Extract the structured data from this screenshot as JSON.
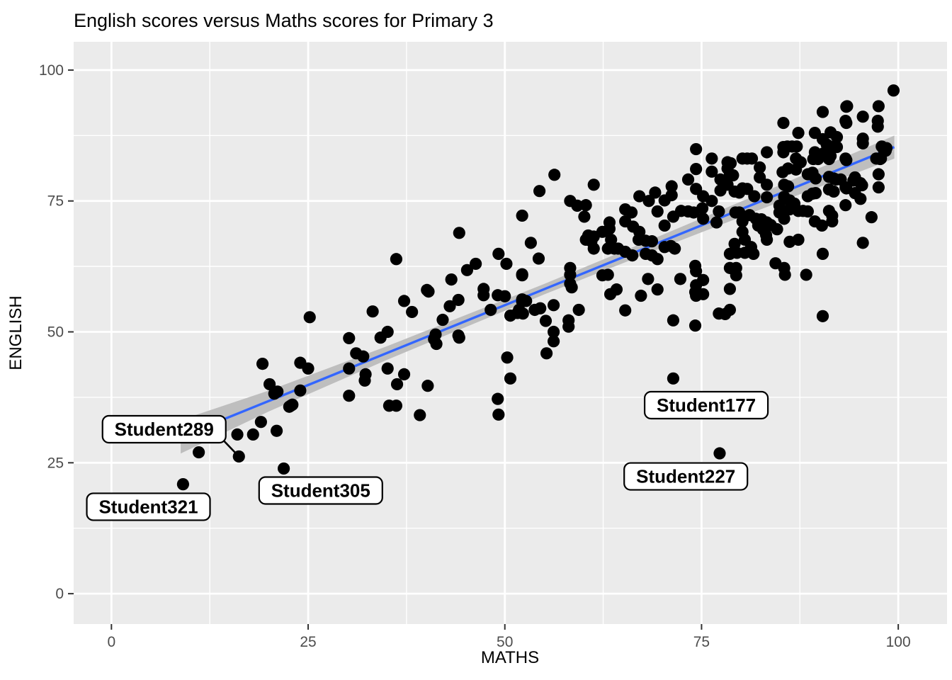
{
  "chart_data": {
    "type": "scatter",
    "title": "English scores versus Maths scores for Primary 3",
    "xlabel": "MATHS",
    "ylabel": "ENGLISH",
    "xlim": [
      -4.8,
      106.2
    ],
    "ylim": [
      -5.8,
      105.4
    ],
    "x_ticks": [
      "0",
      "25",
      "50",
      "75",
      "100"
    ],
    "y_ticks": [
      "0",
      "25",
      "50",
      "75",
      "100"
    ],
    "x_tick_values": [
      0,
      25,
      50,
      75,
      100
    ],
    "y_tick_values": [
      0,
      25,
      50,
      75,
      100
    ],
    "grid": "major and minor white gridlines on grey panel",
    "legend": "none",
    "colors": {
      "panel": "#EBEBEB",
      "grid_major": "#FFFFFF",
      "grid_minor": "#F5F5F5",
      "point": "#000000",
      "smooth_line": "#3366FF",
      "ribbon": "#BEBEBE",
      "tick_label": "#4D4D4D",
      "tick_mark": "#333333",
      "axis_title": "#000000",
      "label_box_bg": "#FFFFFF",
      "label_box_border": "#000000",
      "label_text": "#000000"
    },
    "smooth": {
      "method": "lm",
      "x_start": 8.8,
      "x_end": 99.5,
      "intercept": 24.6,
      "slope": 0.61,
      "ribbon_halfwidth": [
        [
          8.8,
          3.2
        ],
        [
          20,
          2.0
        ],
        [
          35,
          1.3
        ],
        [
          55,
          1.0
        ],
        [
          70,
          1.2
        ],
        [
          85,
          1.6
        ],
        [
          99.5,
          2.2
        ]
      ]
    },
    "annotations": [
      {
        "label": "Student289",
        "point": [
          16.2,
          26.2
        ],
        "box_center": [
          6.7,
          31.4
        ],
        "leader": true
      },
      {
        "label": "Student305",
        "point": [
          21.9,
          23.9
        ],
        "box_center": [
          26.6,
          19.7
        ],
        "leader": false
      },
      {
        "label": "Student321",
        "point": [
          9.1,
          20.9
        ],
        "box_center": [
          4.7,
          16.6
        ],
        "leader": false
      },
      {
        "label": "Student177",
        "point": [
          71.4,
          41.1
        ],
        "box_center": [
          75.6,
          36.0
        ],
        "leader": false
      },
      {
        "label": "Student227",
        "point": [
          77.3,
          26.8
        ],
        "box_center": [
          73.0,
          22.4
        ],
        "leader": false
      }
    ],
    "points": [
      [
        9.1,
        20.9
      ],
      [
        11.1,
        27.0
      ],
      [
        16.2,
        26.2
      ],
      [
        16.0,
        30.4
      ],
      [
        18.0,
        30.4
      ],
      [
        19.0,
        32.8
      ],
      [
        20.7,
        38.2
      ],
      [
        21.0,
        31.1
      ],
      [
        21.9,
        23.9
      ],
      [
        22.6,
        35.7
      ],
      [
        19.2,
        43.9
      ],
      [
        20.1,
        40.0
      ],
      [
        21.1,
        38.6
      ],
      [
        23.0,
        36.1
      ],
      [
        22.8,
        35.9
      ],
      [
        24.0,
        44.1
      ],
      [
        25.0,
        43.0
      ],
      [
        24.0,
        38.8
      ],
      [
        25.2,
        52.8
      ],
      [
        30.2,
        48.8
      ],
      [
        30.2,
        43.0
      ],
      [
        30.2,
        37.8
      ],
      [
        31.1,
        45.9
      ],
      [
        32.0,
        45.3
      ],
      [
        32.3,
        41.9
      ],
      [
        32.2,
        40.7
      ],
      [
        33.2,
        53.9
      ],
      [
        34.2,
        48.9
      ],
      [
        35.1,
        50.0
      ],
      [
        35.1,
        43.0
      ],
      [
        35.3,
        35.9
      ],
      [
        36.2,
        35.9
      ],
      [
        36.3,
        40.0
      ],
      [
        36.2,
        63.9
      ],
      [
        37.2,
        55.9
      ],
      [
        37.2,
        41.9
      ],
      [
        38.2,
        53.8
      ],
      [
        39.2,
        34.1
      ],
      [
        40.2,
        39.7
      ],
      [
        40.3,
        57.7
      ],
      [
        40.1,
        58.0
      ],
      [
        41.0,
        48.6
      ],
      [
        41.3,
        47.7
      ],
      [
        41.2,
        49.5
      ],
      [
        42.1,
        52.3
      ],
      [
        43.2,
        60.0
      ],
      [
        43.0,
        54.9
      ],
      [
        44.2,
        68.9
      ],
      [
        44.1,
        56.1
      ],
      [
        44.1,
        49.3
      ],
      [
        44.2,
        48.9
      ],
      [
        45.2,
        61.8
      ],
      [
        46.3,
        63.0
      ],
      [
        47.3,
        58.2
      ],
      [
        47.3,
        57.0
      ],
      [
        48.2,
        54.2
      ],
      [
        49.2,
        64.9
      ],
      [
        49.1,
        57.0
      ],
      [
        49.1,
        37.2
      ],
      [
        49.2,
        34.2
      ],
      [
        50.2,
        63.0
      ],
      [
        50.0,
        56.8
      ],
      [
        50.3,
        45.1
      ],
      [
        50.7,
        53.1
      ],
      [
        50.7,
        41.1
      ],
      [
        51.6,
        53.6
      ],
      [
        51.8,
        54.2
      ],
      [
        52.2,
        72.2
      ],
      [
        52.2,
        61.0
      ],
      [
        52.2,
        60.8
      ],
      [
        52.2,
        56.2
      ],
      [
        52.2,
        55.8
      ],
      [
        52.7,
        55.9
      ],
      [
        52.3,
        53.5
      ],
      [
        53.3,
        67.0
      ],
      [
        53.8,
        54.2
      ],
      [
        54.3,
        64.0
      ],
      [
        54.4,
        76.9
      ],
      [
        54.5,
        54.5
      ],
      [
        55.2,
        52.1
      ],
      [
        55.3,
        45.9
      ],
      [
        56.2,
        55.1
      ],
      [
        56.2,
        50.0
      ],
      [
        56.2,
        48.2
      ],
      [
        56.3,
        80.0
      ],
      [
        58.3,
        75.0
      ],
      [
        58.3,
        62.2
      ],
      [
        58.3,
        60.9
      ],
      [
        58.3,
        59.2
      ],
      [
        58.5,
        58.5
      ],
      [
        58.1,
        52.2
      ],
      [
        58.1,
        51.0
      ],
      [
        59.2,
        74.1
      ],
      [
        59.4,
        54.2
      ],
      [
        60.3,
        74.2
      ],
      [
        60.1,
        72.0
      ],
      [
        60.3,
        67.6
      ],
      [
        60.6,
        68.4
      ],
      [
        61.0,
        67.3
      ],
      [
        61.3,
        78.1
      ],
      [
        61.3,
        68.2
      ],
      [
        61.3,
        65.9
      ],
      [
        62.4,
        69.1
      ],
      [
        62.4,
        60.8
      ],
      [
        63.1,
        60.9
      ],
      [
        63.1,
        65.9
      ],
      [
        63.3,
        70.9
      ],
      [
        63.3,
        69.7
      ],
      [
        63.5,
        67.6
      ],
      [
        63.9,
        65.9
      ],
      [
        64.4,
        65.9
      ],
      [
        64.2,
        58.1
      ],
      [
        63.4,
        57.2
      ],
      [
        65.3,
        73.4
      ],
      [
        65.3,
        71.1
      ],
      [
        65.3,
        65.3
      ],
      [
        65.3,
        54.1
      ],
      [
        66.1,
        72.8
      ],
      [
        66.3,
        70.1
      ],
      [
        66.2,
        64.6
      ],
      [
        67.1,
        75.9
      ],
      [
        67.1,
        69.1
      ],
      [
        67.0,
        67.6
      ],
      [
        67.9,
        67.4
      ],
      [
        67.9,
        64.9
      ],
      [
        67.3,
        56.9
      ],
      [
        68.3,
        75.0
      ],
      [
        68.7,
        67.3
      ],
      [
        68.7,
        64.6
      ],
      [
        68.2,
        60.1
      ],
      [
        69.1,
        76.6
      ],
      [
        69.4,
        73.0
      ],
      [
        69.4,
        63.9
      ],
      [
        69.4,
        58.1
      ],
      [
        70.3,
        75.1
      ],
      [
        70.3,
        70.3
      ],
      [
        70.3,
        66.2
      ],
      [
        71.2,
        77.8
      ],
      [
        71.2,
        76.1
      ],
      [
        71.1,
        66.4
      ],
      [
        71.4,
        72.0
      ],
      [
        71.4,
        52.2
      ],
      [
        71.4,
        41.1
      ],
      [
        71.6,
        65.9
      ],
      [
        72.3,
        60.1
      ],
      [
        72.4,
        73.1
      ],
      [
        73.3,
        79.1
      ],
      [
        73.3,
        73.0
      ],
      [
        74.0,
        72.8
      ],
      [
        74.3,
        84.9
      ],
      [
        74.3,
        81.1
      ],
      [
        74.3,
        77.3
      ],
      [
        74.2,
        62.6
      ],
      [
        74.3,
        61.6
      ],
      [
        74.3,
        58.9
      ],
      [
        74.2,
        57.6
      ],
      [
        74.3,
        56.9
      ],
      [
        74.2,
        51.2
      ],
      [
        75.2,
        75.9
      ],
      [
        75.1,
        73.6
      ],
      [
        75.2,
        71.6
      ],
      [
        75.2,
        59.9
      ],
      [
        75.2,
        57.2
      ],
      [
        76.3,
        83.1
      ],
      [
        76.3,
        80.6
      ],
      [
        76.3,
        75.0
      ],
      [
        76.9,
        70.9
      ],
      [
        77.4,
        79.1
      ],
      [
        77.4,
        77.0
      ],
      [
        77.2,
        73.0
      ],
      [
        77.2,
        53.5
      ],
      [
        77.3,
        26.8
      ],
      [
        78.0,
        53.4
      ],
      [
        78.3,
        82.4
      ],
      [
        78.3,
        81.2
      ],
      [
        78.3,
        78.1
      ],
      [
        78.6,
        80.1
      ],
      [
        78.6,
        64.9
      ],
      [
        78.6,
        62.2
      ],
      [
        78.6,
        58.2
      ],
      [
        78.6,
        54.2
      ],
      [
        78.7,
        82.2
      ],
      [
        79.0,
        79.9
      ],
      [
        79.2,
        76.8
      ],
      [
        79.2,
        66.8
      ],
      [
        79.4,
        62.2
      ],
      [
        79.4,
        60.8
      ],
      [
        79.5,
        65.1
      ],
      [
        79.8,
        76.6
      ],
      [
        79.3,
        72.8
      ],
      [
        79.8,
        72.8
      ],
      [
        80.2,
        83.1
      ],
      [
        80.2,
        77.4
      ],
      [
        80.2,
        71.1
      ],
      [
        80.2,
        69.1
      ],
      [
        80.5,
        67.6
      ],
      [
        80.5,
        65.1
      ],
      [
        80.8,
        83.1
      ],
      [
        80.8,
        77.3
      ],
      [
        81.4,
        83.1
      ],
      [
        81.3,
        66.2
      ],
      [
        81.6,
        64.9
      ],
      [
        81.1,
        72.3
      ],
      [
        81.7,
        75.9
      ],
      [
        81.9,
        71.6
      ],
      [
        82.2,
        70.3
      ],
      [
        82.4,
        81.4
      ],
      [
        82.4,
        79.5
      ],
      [
        82.6,
        71.5
      ],
      [
        82.8,
        69.6
      ],
      [
        83.3,
        84.3
      ],
      [
        83.3,
        78.1
      ],
      [
        83.3,
        75.7
      ],
      [
        83.3,
        70.9
      ],
      [
        83.2,
        68.5
      ],
      [
        83.3,
        67.6
      ],
      [
        83.8,
        70.4
      ],
      [
        84.4,
        63.1
      ],
      [
        84.6,
        69.6
      ],
      [
        84.9,
        74.1
      ],
      [
        84.9,
        72.8
      ],
      [
        85.3,
        80.5
      ],
      [
        85.4,
        89.9
      ],
      [
        85.4,
        85.3
      ],
      [
        85.9,
        85.4
      ],
      [
        86.5,
        85.4
      ],
      [
        87.1,
        85.4
      ],
      [
        85.4,
        84.3
      ],
      [
        85.5,
        78.1
      ],
      [
        85.5,
        75.8
      ],
      [
        85.5,
        73.1
      ],
      [
        85.5,
        71.6
      ],
      [
        85.6,
        60.9
      ],
      [
        85.5,
        62.2
      ],
      [
        86.0,
        81.2
      ],
      [
        86.0,
        77.8
      ],
      [
        86.2,
        75.1
      ],
      [
        86.2,
        73.4
      ],
      [
        86.2,
        67.2
      ],
      [
        86.8,
        74.5
      ],
      [
        87.0,
        83.1
      ],
      [
        87.0,
        81.0
      ],
      [
        87.3,
        88.0
      ],
      [
        87.3,
        73.1
      ],
      [
        87.3,
        67.6
      ],
      [
        87.6,
        82.4
      ],
      [
        87.9,
        73.1
      ],
      [
        88.3,
        60.9
      ],
      [
        88.5,
        80.1
      ],
      [
        88.5,
        75.9
      ],
      [
        88.5,
        73.0
      ],
      [
        89.1,
        80.4
      ],
      [
        89.1,
        76.4
      ],
      [
        89.2,
        83.0
      ],
      [
        89.4,
        88.0
      ],
      [
        89.4,
        84.3
      ],
      [
        89.4,
        71.1
      ],
      [
        89.5,
        79.3
      ],
      [
        89.5,
        76.5
      ],
      [
        89.8,
        83.0
      ],
      [
        89.9,
        83.6
      ],
      [
        90.3,
        70.3
      ],
      [
        90.4,
        92.0
      ],
      [
        90.4,
        86.8
      ],
      [
        90.4,
        64.9
      ],
      [
        90.4,
        53.0
      ],
      [
        90.5,
        84.1
      ],
      [
        90.9,
        85.8
      ],
      [
        91.2,
        84.3
      ],
      [
        91.2,
        83.0
      ],
      [
        91.2,
        79.6
      ],
      [
        91.2,
        77.2
      ],
      [
        91.2,
        73.1
      ],
      [
        91.4,
        88.1
      ],
      [
        91.4,
        83.6
      ],
      [
        91.6,
        85.3
      ],
      [
        91.6,
        72.2
      ],
      [
        91.6,
        71.1
      ],
      [
        91.8,
        79.3
      ],
      [
        91.8,
        76.8
      ],
      [
        92.1,
        79.1
      ],
      [
        92.2,
        87.2
      ],
      [
        92.2,
        85.3
      ],
      [
        92.7,
        79.1
      ],
      [
        93.3,
        90.3
      ],
      [
        93.3,
        83.1
      ],
      [
        93.3,
        77.6
      ],
      [
        93.3,
        74.2
      ],
      [
        93.4,
        93.0
      ],
      [
        93.4,
        89.9
      ],
      [
        93.4,
        82.8
      ],
      [
        93.4,
        77.4
      ],
      [
        93.5,
        93.1
      ],
      [
        94.3,
        78.9
      ],
      [
        94.5,
        79.5
      ],
      [
        94.5,
        76.5
      ],
      [
        95.2,
        78.4
      ],
      [
        95.2,
        75.4
      ],
      [
        95.4,
        78.0
      ],
      [
        95.5,
        91.1
      ],
      [
        95.5,
        86.9
      ],
      [
        95.5,
        86.0
      ],
      [
        95.5,
        67.0
      ],
      [
        96.6,
        71.9
      ],
      [
        97.2,
        83.1
      ],
      [
        97.4,
        90.3
      ],
      [
        97.4,
        89.2
      ],
      [
        97.5,
        93.1
      ],
      [
        97.5,
        80.1
      ],
      [
        97.5,
        77.6
      ],
      [
        97.7,
        83.0
      ],
      [
        97.8,
        83.1
      ],
      [
        97.9,
        85.4
      ],
      [
        98.2,
        84.6
      ],
      [
        98.4,
        84.6
      ],
      [
        98.5,
        85.1
      ],
      [
        99.4,
        96.1
      ]
    ]
  }
}
